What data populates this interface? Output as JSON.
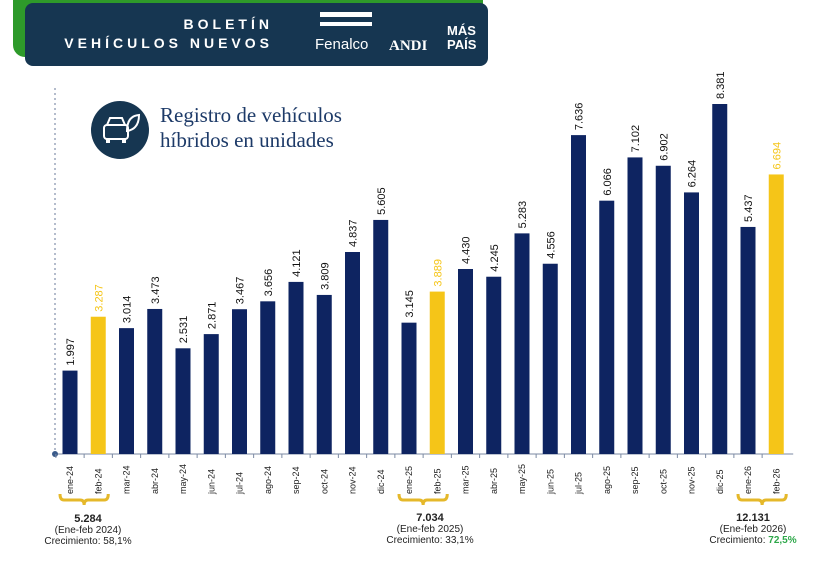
{
  "header": {
    "title_line1": "BOLETÍN",
    "title_line2": "VEHÍCULOS NUEVOS",
    "logos": [
      "Fenalco",
      "ANDI",
      "MÁS PAÍS"
    ]
  },
  "subtitle_line1": "Registro de vehículos",
  "subtitle_line2": "híbridos  en unidades",
  "icon": "hybrid-car-leaf-icon",
  "colors": {
    "navy": "#0e2461",
    "highlight": "#f5c518",
    "green": "#2e9a2a",
    "banner": "#163651",
    "growth_green": "#2ea84a"
  },
  "chart_data": {
    "type": "bar",
    "categories": [
      "ene-24",
      "feb-24",
      "mar-24",
      "abr-24",
      "may-24",
      "jun-24",
      "jul-24",
      "ago-24",
      "sep-24",
      "oct-24",
      "nov-24",
      "dic-24",
      "ene-25",
      "feb-25",
      "mar-25",
      "abr-25",
      "may-25",
      "jun-25",
      "jul-25",
      "ago-25",
      "sep-25",
      "oct-25",
      "nov-25",
      "dic-25",
      "ene-26",
      "feb-26"
    ],
    "values": [
      1997,
      3287,
      3014,
      3473,
      2531,
      2871,
      3467,
      3656,
      4121,
      3809,
      4837,
      5605,
      3145,
      3889,
      4430,
      4245,
      5283,
      4556,
      7636,
      6066,
      7102,
      6902,
      6264,
      8381,
      5437,
      6694
    ],
    "value_labels": [
      "1.997",
      "3.287",
      "3.014",
      "3.473",
      "2.531",
      "2.871",
      "3.467",
      "3.656",
      "4.121",
      "3.809",
      "4.837",
      "5.605",
      "3.145",
      "3.889",
      "4.430",
      "4.245",
      "5.283",
      "4.556",
      "7.636",
      "6.066",
      "7.102",
      "6.902",
      "6.264",
      "8.381",
      "5.437",
      "6.694"
    ],
    "highlighted": [
      "feb-24",
      "feb-25",
      "feb-26"
    ],
    "ylim": [
      0,
      8381
    ],
    "grid": false
  },
  "summaries": [
    {
      "total": "5.284",
      "period": "(Ene-feb 2024)",
      "growth_label": "Crecimiento: ",
      "growth": "58,1%"
    },
    {
      "total": "7.034",
      "period": "(Ene-feb 2025)",
      "growth_label": "Crecimiento: ",
      "growth": "33,1%"
    },
    {
      "total": "12.131",
      "period": "(Ene-feb 2026)",
      "growth_label": "Crecimiento: ",
      "growth": "72,5%"
    }
  ]
}
